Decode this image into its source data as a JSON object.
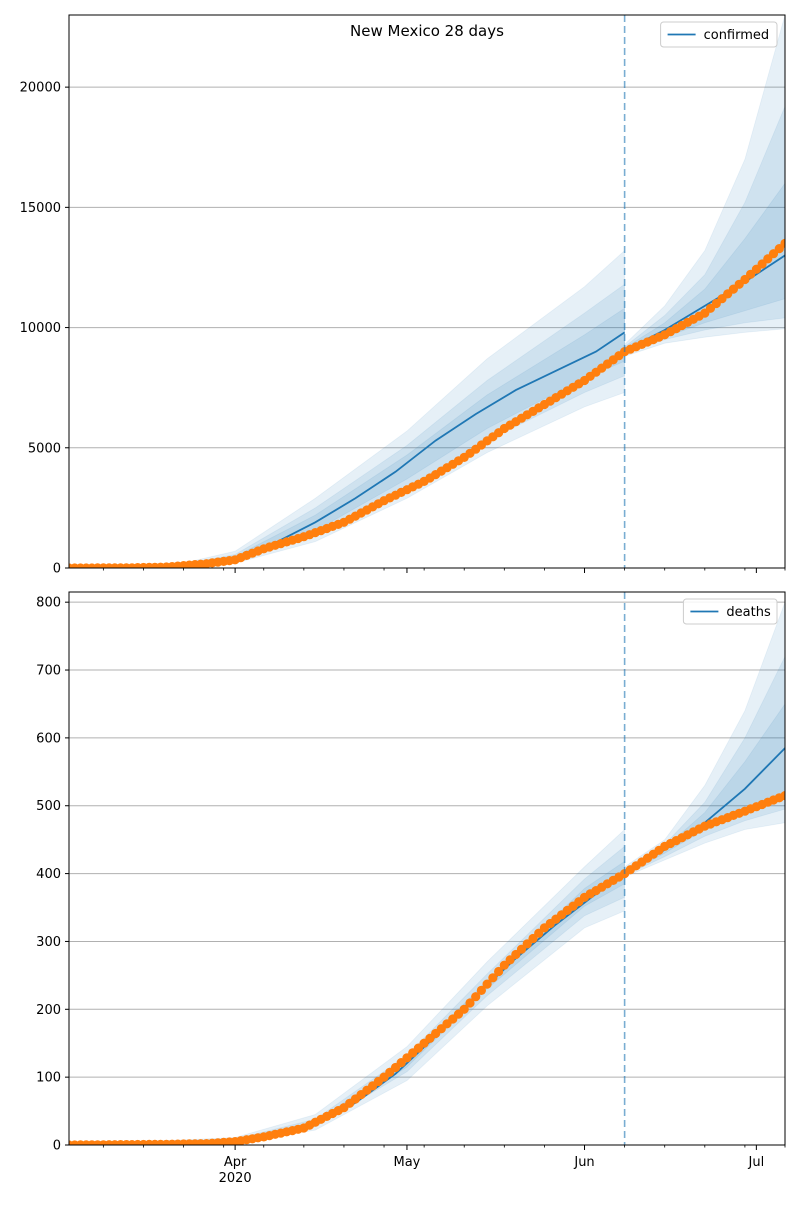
{
  "colors": {
    "model_line": "#1f77b4",
    "observed_points": "#ff7f0e",
    "band": "#1f77b4",
    "forecast_marker": "#1f77b4",
    "grid": "#b0b0b0",
    "axes": "#000000"
  },
  "chart_data": [
    {
      "type": "line",
      "title": "New Mexico 28 days",
      "xlabel": "",
      "ylabel": "",
      "grid": "horizontal",
      "legend_location": "top-right",
      "x_range": [
        "2020-03-03",
        "2020-07-06"
      ],
      "ylim": [
        0,
        23000
      ],
      "yticks": [
        0,
        5000,
        10000,
        15000,
        20000
      ],
      "ytick_labels": [
        "0",
        "5000",
        "10000",
        "15000",
        "20000"
      ],
      "x_month_ticks": [
        {
          "date": "2020-04-01",
          "label": "Apr",
          "sublabel": "2020"
        },
        {
          "date": "2020-05-01",
          "label": "May",
          "sublabel": ""
        },
        {
          "date": "2020-06-01",
          "label": "Jun",
          "sublabel": ""
        },
        {
          "date": "2020-07-01",
          "label": "Jul",
          "sublabel": ""
        }
      ],
      "forecast_start": "2020-06-08",
      "series": [
        {
          "name": "confirmed",
          "kind": "model",
          "x": [
            "2020-03-03",
            "2020-03-20",
            "2020-03-27",
            "2020-04-01",
            "2020-04-08",
            "2020-04-15",
            "2020-04-22",
            "2020-04-29",
            "2020-05-06",
            "2020-05-13",
            "2020-05-20",
            "2020-05-27",
            "2020-06-03",
            "2020-06-08"
          ],
          "y": [
            0,
            20,
            120,
            400,
            1050,
            1900,
            2900,
            4000,
            5300,
            6400,
            7400,
            8200,
            9000,
            9800
          ]
        },
        {
          "name": "",
          "kind": "model",
          "x": [
            "2020-06-08",
            "2020-06-15",
            "2020-06-22",
            "2020-06-29",
            "2020-07-06"
          ],
          "y": [
            9050,
            9900,
            10900,
            11900,
            13000
          ]
        },
        {
          "name": "",
          "kind": "observed",
          "x": [
            "2020-03-03",
            "2020-03-13",
            "2020-03-20",
            "2020-03-27",
            "2020-04-01",
            "2020-04-06",
            "2020-04-13",
            "2020-04-20",
            "2020-04-27",
            "2020-05-04",
            "2020-05-11",
            "2020-05-18",
            "2020-05-25",
            "2020-06-01",
            "2020-06-08",
            "2020-06-15",
            "2020-06-22",
            "2020-06-29",
            "2020-07-06"
          ],
          "y": [
            0,
            5,
            40,
            180,
            340,
            800,
            1300,
            1900,
            2800,
            3600,
            4600,
            5800,
            6800,
            7800,
            9000,
            9700,
            10600,
            12000,
            13500
          ]
        }
      ],
      "bands": [
        {
          "x": [
            "2020-03-03",
            "2020-03-20",
            "2020-04-01",
            "2020-04-15",
            "2020-05-01",
            "2020-05-15",
            "2020-06-01",
            "2020-06-08"
          ],
          "low": [
            0,
            5,
            200,
            1100,
            2900,
            4800,
            6700,
            7300
          ],
          "high": [
            0,
            40,
            700,
            2900,
            5700,
            8700,
            11700,
            13200
          ]
        },
        {
          "x": [
            "2020-03-03",
            "2020-03-20",
            "2020-04-01",
            "2020-04-15",
            "2020-05-01",
            "2020-05-15",
            "2020-06-01",
            "2020-06-08"
          ],
          "low": [
            0,
            10,
            260,
            1350,
            3300,
            5300,
            7300,
            8000
          ],
          "high": [
            0,
            30,
            560,
            2500,
            5100,
            7800,
            10600,
            11800
          ]
        },
        {
          "x": [
            "2020-03-03",
            "2020-03-20",
            "2020-04-01",
            "2020-04-15",
            "2020-05-01",
            "2020-05-15",
            "2020-06-01",
            "2020-06-08"
          ],
          "low": [
            0,
            15,
            320,
            1550,
            3700,
            5800,
            7900,
            8600
          ],
          "high": [
            0,
            25,
            480,
            2200,
            4700,
            7200,
            9700,
            10800
          ]
        },
        {
          "x": [
            "2020-06-08",
            "2020-06-15",
            "2020-06-22",
            "2020-06-29",
            "2020-07-06"
          ],
          "low": [
            8800,
            9350,
            9600,
            9800,
            9950
          ],
          "high": [
            9300,
            10900,
            13200,
            17000,
            23000
          ]
        },
        {
          "x": [
            "2020-06-08",
            "2020-06-15",
            "2020-06-22",
            "2020-06-29",
            "2020-07-06"
          ],
          "low": [
            8900,
            9500,
            9900,
            10200,
            10400
          ],
          "high": [
            9200,
            10500,
            12200,
            15200,
            19200
          ]
        },
        {
          "x": [
            "2020-06-08",
            "2020-06-15",
            "2020-06-22",
            "2020-06-29",
            "2020-07-06"
          ],
          "low": [
            8950,
            9600,
            10200,
            10700,
            11200
          ],
          "high": [
            9150,
            10200,
            11600,
            13700,
            16000
          ]
        }
      ]
    },
    {
      "type": "line",
      "title": "",
      "xlabel": "",
      "ylabel": "",
      "grid": "horizontal",
      "legend_location": "top-right",
      "x_range": [
        "2020-03-03",
        "2020-07-06"
      ],
      "ylim": [
        0,
        815
      ],
      "yticks": [
        0,
        100,
        200,
        300,
        400,
        500,
        600,
        700,
        800
      ],
      "ytick_labels": [
        "0",
        "100",
        "200",
        "300",
        "400",
        "500",
        "600",
        "700",
        "800"
      ],
      "x_month_ticks": [
        {
          "date": "2020-04-01",
          "label": "Apr",
          "sublabel": "2020"
        },
        {
          "date": "2020-05-01",
          "label": "May",
          "sublabel": ""
        },
        {
          "date": "2020-06-01",
          "label": "Jun",
          "sublabel": ""
        },
        {
          "date": "2020-07-01",
          "label": "Jul",
          "sublabel": ""
        }
      ],
      "forecast_start": "2020-06-08",
      "series": [
        {
          "name": "deaths",
          "kind": "model",
          "x": [
            "2020-03-03",
            "2020-03-27",
            "2020-04-01",
            "2020-04-08",
            "2020-04-15",
            "2020-04-22",
            "2020-04-29",
            "2020-05-06",
            "2020-05-13",
            "2020-05-20",
            "2020-05-27",
            "2020-06-03",
            "2020-06-08"
          ],
          "y": [
            0,
            3,
            7,
            15,
            32,
            62,
            105,
            160,
            220,
            275,
            325,
            370,
            400
          ]
        },
        {
          "name": "",
          "kind": "model",
          "x": [
            "2020-06-08",
            "2020-06-15",
            "2020-06-22",
            "2020-06-29",
            "2020-07-06"
          ],
          "y": [
            400,
            435,
            475,
            525,
            585
          ]
        },
        {
          "name": "",
          "kind": "observed",
          "x": [
            "2020-03-03",
            "2020-03-20",
            "2020-03-27",
            "2020-04-01",
            "2020-04-06",
            "2020-04-13",
            "2020-04-20",
            "2020-04-27",
            "2020-05-04",
            "2020-05-11",
            "2020-05-18",
            "2020-05-25",
            "2020-06-01",
            "2020-06-08",
            "2020-06-15",
            "2020-06-22",
            "2020-06-29",
            "2020-07-06"
          ],
          "y": [
            0,
            1,
            2,
            5,
            12,
            25,
            55,
            100,
            150,
            200,
            265,
            320,
            365,
            400,
            440,
            470,
            492,
            515
          ]
        }
      ],
      "bands": [
        {
          "x": [
            "2020-03-03",
            "2020-04-01",
            "2020-04-15",
            "2020-05-01",
            "2020-05-15",
            "2020-06-01",
            "2020-06-08"
          ],
          "low": [
            0,
            3,
            22,
            95,
            205,
            320,
            345
          ],
          "high": [
            0,
            11,
            45,
            145,
            270,
            410,
            465
          ]
        },
        {
          "x": [
            "2020-03-03",
            "2020-04-01",
            "2020-04-15",
            "2020-05-01",
            "2020-05-15",
            "2020-06-01",
            "2020-06-08"
          ],
          "low": [
            0,
            5,
            27,
            108,
            220,
            338,
            365
          ],
          "high": [
            0,
            9,
            38,
            132,
            252,
            392,
            440
          ]
        },
        {
          "x": [
            "2020-03-03",
            "2020-04-01",
            "2020-04-15",
            "2020-05-01",
            "2020-05-15",
            "2020-06-01",
            "2020-06-08"
          ],
          "low": [
            0,
            6,
            30,
            115,
            230,
            352,
            385
          ],
          "high": [
            0,
            8,
            34,
            125,
            242,
            378,
            418
          ]
        },
        {
          "x": [
            "2020-06-08",
            "2020-06-15",
            "2020-06-22",
            "2020-06-29",
            "2020-07-06"
          ],
          "low": [
            395,
            420,
            445,
            465,
            475
          ],
          "high": [
            410,
            450,
            530,
            640,
            800
          ]
        },
        {
          "x": [
            "2020-06-08",
            "2020-06-15",
            "2020-06-22",
            "2020-06-29",
            "2020-07-06"
          ],
          "low": [
            397,
            425,
            455,
            478,
            495
          ],
          "high": [
            406,
            443,
            505,
            600,
            720
          ]
        },
        {
          "x": [
            "2020-06-08",
            "2020-06-15",
            "2020-06-22",
            "2020-06-29",
            "2020-07-06"
          ],
          "low": [
            398,
            430,
            465,
            495,
            520
          ],
          "high": [
            404,
            438,
            490,
            565,
            650
          ]
        }
      ]
    }
  ]
}
